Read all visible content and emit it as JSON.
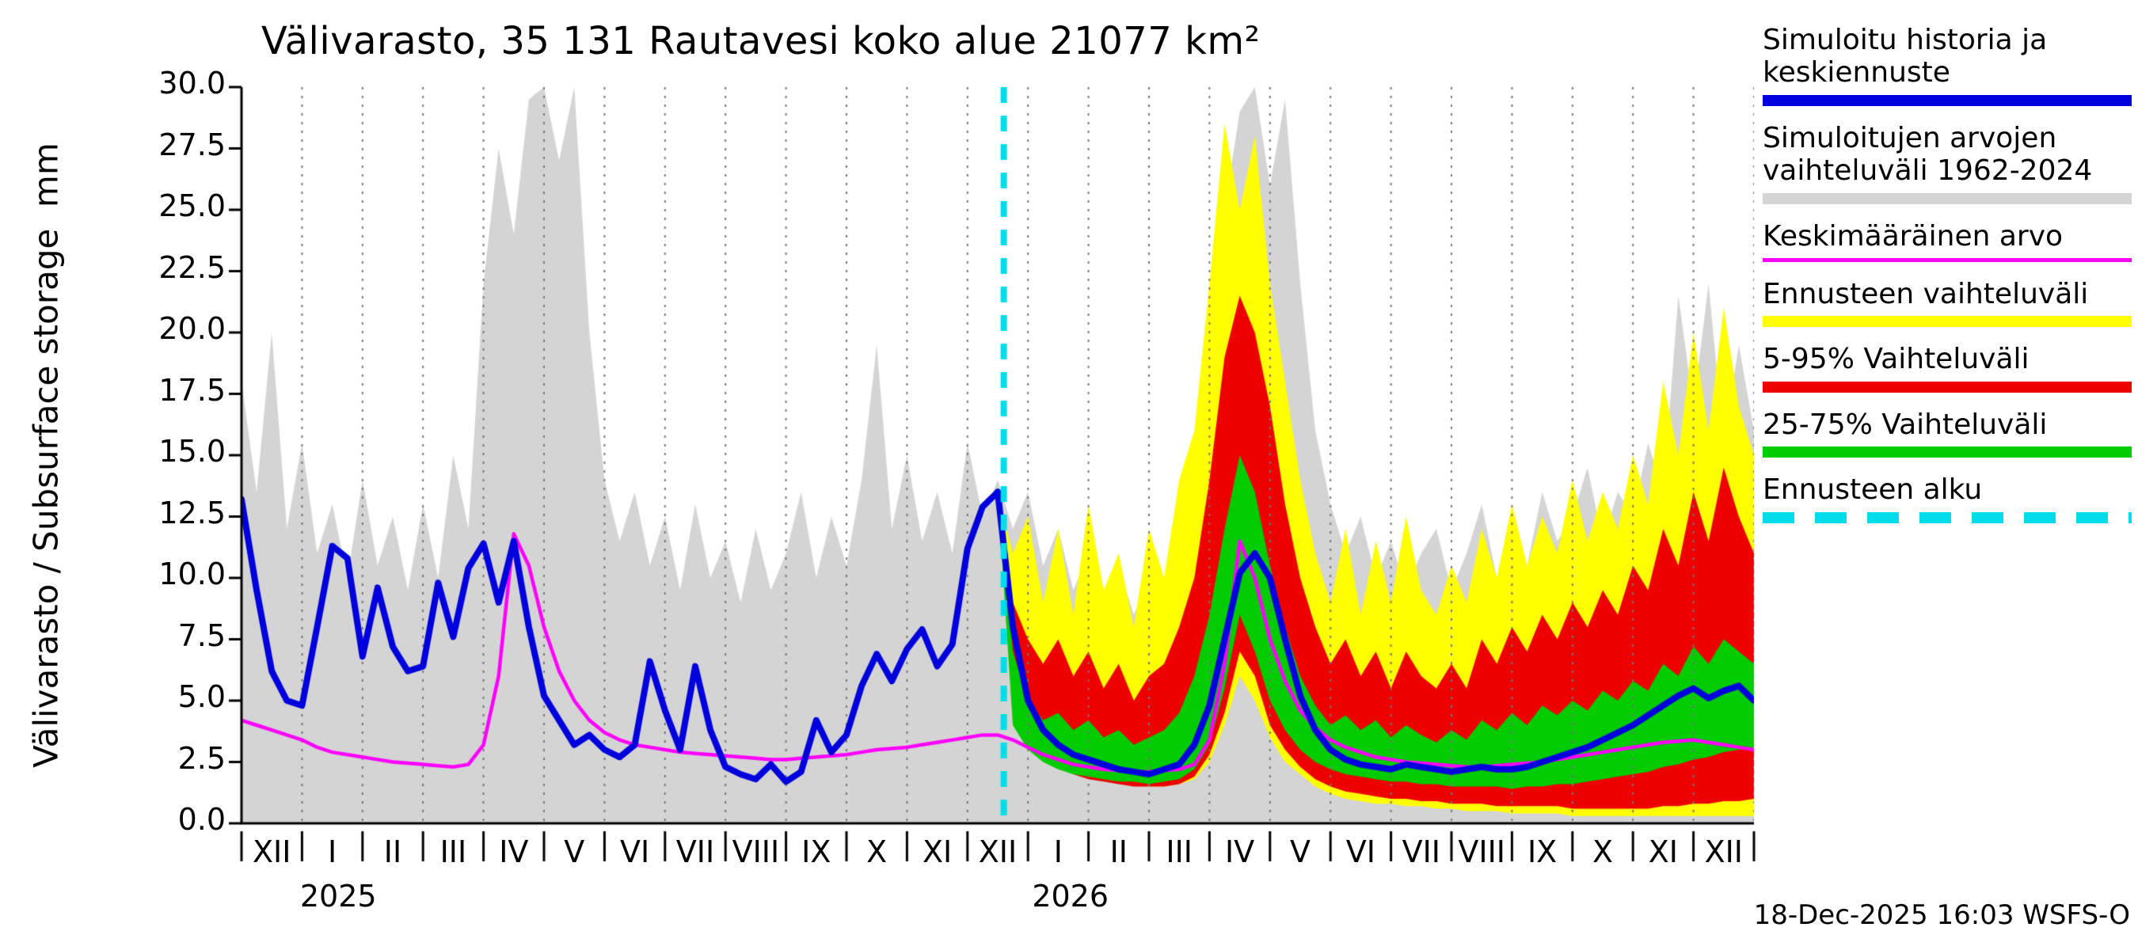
{
  "chart_data": {
    "type": "line",
    "title": "Välivarasto, 35 131 Rautavesi koko alue 21077 km²",
    "ylabel": "Välivarasto / Subsurface storage  mm",
    "ylim": [
      0,
      30
    ],
    "y_tick_step": 2.5,
    "y_tick_labels": [
      "0.0",
      "2.5",
      "5.0",
      "7.5",
      "10.0",
      "12.5",
      "15.0",
      "17.5",
      "20.0",
      "22.5",
      "25.0",
      "27.5",
      "30.0"
    ],
    "xlim_months": [
      0,
      25
    ],
    "x_unit": "months, 0 = 1 Dec 2024, series sampled at 0.25-month steps",
    "month_labels": [
      "XII",
      "I",
      "II",
      "III",
      "IV",
      "V",
      "VI",
      "VII",
      "VIII",
      "IX",
      "X",
      "XI",
      "XII",
      "I",
      "II",
      "III",
      "IV",
      "V",
      "VI",
      "VII",
      "VIII",
      "IX",
      "X",
      "XI",
      "XII"
    ],
    "year_labels": [
      {
        "text": "2025",
        "month": 1.6
      },
      {
        "text": "2026",
        "month": 13.7
      }
    ],
    "grid": {
      "vertical_months": true,
      "style": "dotted",
      "color": "#777777"
    },
    "forecast_start": {
      "label": "Ennusteen alku",
      "month": 12.6,
      "date": "18-Dec-2025",
      "color": "#00dcea"
    },
    "legend": [
      {
        "label": "Simuloitu historia ja keskiennuste",
        "color": "#0000dd",
        "swatch": "thick"
      },
      {
        "label": "Simuloitujen arvojen vaihteluväli 1962-2024",
        "color": "#d4d4d4",
        "swatch": "thick"
      },
      {
        "label": "Keskimääräinen arvo",
        "color": "#ff00ff",
        "swatch": "thin"
      },
      {
        "label": "Ennusteen vaihteluväli",
        "color": "#ffff00",
        "swatch": "thick"
      },
      {
        "label": "5-95% Vaihteluväli",
        "color": "#ee0000",
        "swatch": "thick"
      },
      {
        "label": "25-75% Vaihteluväli",
        "color": "#00cc00",
        "swatch": "thick"
      },
      {
        "label": "Ennusteen alku",
        "color": "#00dcea",
        "swatch": "dashed"
      }
    ],
    "series": [
      {
        "name": "Simuloitujen arvojen vaihteluväli 1962-2024",
        "type": "band",
        "color": "#d4d4d4",
        "start": 0,
        "step": 0.25,
        "lower": 0,
        "upper": [
          18,
          13.5,
          20,
          12,
          15.5,
          11,
          13,
          10,
          14,
          10.5,
          12.5,
          9.5,
          13,
          10,
          15,
          12,
          22,
          27.5,
          24,
          29.5,
          30,
          27,
          30,
          20,
          14,
          11.5,
          13.5,
          10.5,
          12.5,
          9.5,
          13,
          10,
          11.5,
          9,
          12,
          9.5,
          11,
          13.5,
          10,
          12.5,
          10.5,
          14,
          19.5,
          12,
          15,
          11.5,
          13.5,
          11,
          15.5,
          12.5,
          14,
          12,
          13.5,
          10.5,
          12,
          9.5,
          11,
          9,
          10.5,
          8.5,
          10,
          9,
          11.5,
          13,
          19,
          25,
          29,
          30,
          26,
          29.5,
          22,
          16,
          13,
          11,
          12.5,
          10,
          11.5,
          9.5,
          11,
          12,
          9.5,
          11,
          13,
          10,
          12,
          10.5,
          13.5,
          11.5,
          12.5,
          14.5,
          11.5,
          13.5,
          12.5,
          15.5,
          13.5,
          21.5,
          17,
          22,
          15.5,
          19.5,
          16
        ]
      },
      {
        "name": "Ennusteen vaihteluväli",
        "type": "band",
        "color": "#ffff00",
        "start": 12.5,
        "step": 0.25,
        "upper": [
          13.4,
          11,
          12.5,
          9,
          12,
          8.5,
          13,
          9.5,
          11,
          8,
          12,
          10,
          14,
          16,
          22,
          28.5,
          25,
          28,
          22,
          18,
          14,
          11,
          9,
          12,
          8.5,
          11.5,
          9,
          12.5,
          9.5,
          8.5,
          10.5,
          9,
          12,
          10,
          13,
          10.5,
          12.5,
          11,
          14,
          11.5,
          13.5,
          12,
          15,
          13,
          18,
          15,
          20,
          16,
          21,
          17,
          15
        ],
        "lower": [
          13.4,
          6,
          4,
          3,
          2.5,
          2.2,
          2,
          1.8,
          1.7,
          1.6,
          1.5,
          1.5,
          1.6,
          1.8,
          2.5,
          4,
          6,
          5,
          3.5,
          2.5,
          2,
          1.5,
          1.2,
          1,
          0.9,
          0.8,
          0.8,
          0.7,
          0.7,
          0.6,
          0.6,
          0.5,
          0.5,
          0.5,
          0.4,
          0.4,
          0.4,
          0.4,
          0.3,
          0.3,
          0.3,
          0.3,
          0.3,
          0.3,
          0.3,
          0.3,
          0.3,
          0.3,
          0.3,
          0.3,
          0.3
        ]
      },
      {
        "name": "5-95% Vaihteluväli",
        "type": "band",
        "color": "#ee0000",
        "start": 12.5,
        "step": 0.25,
        "upper": [
          13.4,
          9,
          7.5,
          6.5,
          7.5,
          6,
          7,
          5.5,
          6.5,
          5,
          6,
          6.5,
          8,
          10,
          14,
          19,
          21.5,
          20,
          17,
          13,
          10,
          8,
          6.5,
          7.5,
          6,
          7,
          5.5,
          7,
          6,
          5.5,
          6.5,
          5.5,
          7.5,
          6.5,
          8,
          7,
          8.5,
          7.5,
          9,
          8,
          9.5,
          8.5,
          10.5,
          9.5,
          12,
          10.5,
          13.5,
          11.5,
          14.5,
          12.5,
          11
        ],
        "lower": [
          13.4,
          5,
          3.5,
          2.8,
          2.3,
          2,
          1.8,
          1.7,
          1.6,
          1.5,
          1.5,
          1.5,
          1.6,
          1.9,
          2.8,
          4.5,
          7,
          6,
          4,
          3,
          2.3,
          1.8,
          1.5,
          1.3,
          1.2,
          1.1,
          1,
          1,
          0.9,
          0.9,
          0.8,
          0.8,
          0.8,
          0.7,
          0.7,
          0.7,
          0.7,
          0.7,
          0.6,
          0.6,
          0.6,
          0.6,
          0.6,
          0.6,
          0.7,
          0.7,
          0.8,
          0.8,
          0.9,
          0.9,
          1
        ]
      },
      {
        "name": "25-75% Vaihteluväli",
        "type": "band",
        "color": "#00cc00",
        "start": 12.5,
        "step": 0.25,
        "upper": [
          13.4,
          7,
          5,
          4.2,
          4.5,
          3.8,
          4.2,
          3.5,
          3.8,
          3.2,
          3.5,
          3.8,
          4.5,
          6,
          8.5,
          12,
          15,
          13.5,
          10.5,
          8,
          6,
          4.8,
          4,
          4.4,
          3.8,
          4.2,
          3.5,
          4,
          3.6,
          3.3,
          3.8,
          3.4,
          4.2,
          3.8,
          4.5,
          4,
          4.8,
          4.4,
          5,
          4.6,
          5.4,
          5,
          5.8,
          5.4,
          6.5,
          6,
          7.2,
          6.5,
          7.5,
          7,
          6.5
        ],
        "lower": [
          13.4,
          4,
          3,
          2.5,
          2.2,
          2,
          1.9,
          1.8,
          1.7,
          1.7,
          1.6,
          1.7,
          1.8,
          2.2,
          3.2,
          5.5,
          8.5,
          7,
          5,
          3.8,
          3,
          2.5,
          2.2,
          2,
          1.9,
          1.8,
          1.7,
          1.7,
          1.6,
          1.6,
          1.5,
          1.5,
          1.5,
          1.5,
          1.4,
          1.5,
          1.5,
          1.6,
          1.6,
          1.7,
          1.8,
          1.9,
          2,
          2.1,
          2.3,
          2.4,
          2.6,
          2.7,
          2.9,
          3,
          3
        ]
      },
      {
        "name": "Keskimääräinen arvo",
        "type": "line",
        "color": "#ff00ff",
        "width": 4.5,
        "start": 0,
        "step": 0.25,
        "values": [
          4.2,
          4,
          3.8,
          3.6,
          3.4,
          3.1,
          2.9,
          2.8,
          2.7,
          2.6,
          2.5,
          2.45,
          2.4,
          2.35,
          2.3,
          2.4,
          3.2,
          6,
          11.8,
          10.5,
          8,
          6.2,
          5,
          4.2,
          3.7,
          3.4,
          3.2,
          3.1,
          3,
          2.9,
          2.85,
          2.8,
          2.75,
          2.7,
          2.65,
          2.6,
          2.6,
          2.65,
          2.7,
          2.75,
          2.8,
          2.9,
          3,
          3.05,
          3.1,
          3.2,
          3.3,
          3.4,
          3.5,
          3.6,
          3.6,
          3.4,
          3.1,
          2.8,
          2.6,
          2.4,
          2.3,
          2.2,
          2.15,
          2.1,
          2.1,
          2.15,
          2.2,
          2.4,
          3.4,
          6.5,
          11.5,
          10,
          7.5,
          5.8,
          4.6,
          3.9,
          3.4,
          3.1,
          2.9,
          2.7,
          2.6,
          2.5,
          2.45,
          2.4,
          2.35,
          2.3,
          2.3,
          2.35,
          2.4,
          2.45,
          2.5,
          2.6,
          2.7,
          2.8,
          2.9,
          3,
          3.1,
          3.2,
          3.3,
          3.35,
          3.4,
          3.3,
          3.2,
          3.1,
          3
        ]
      },
      {
        "name": "Simuloitu historia",
        "type": "line",
        "color": "#0000dd",
        "width": 8,
        "start": 0,
        "step": 0.25,
        "values": [
          13.2,
          9.5,
          6.2,
          5,
          4.8,
          8,
          11.3,
          10.8,
          6.8,
          9.6,
          7.2,
          6.2,
          6.4,
          9.8,
          7.6,
          10.4,
          11.4,
          9,
          11.5,
          8,
          5.2,
          4.2,
          3.2,
          3.6,
          3,
          2.7,
          3.2,
          6.6,
          4.6,
          3,
          6.4,
          3.8,
          2.3,
          2,
          1.8,
          2.4,
          1.7,
          2.1,
          4.2,
          2.9,
          3.6,
          5.6,
          6.9,
          5.8,
          7.1,
          7.9,
          6.4,
          7.3,
          11.2,
          12.9,
          13.5
        ]
      },
      {
        "name": "Keskiennuste",
        "type": "line",
        "color": "#0000dd",
        "width": 8,
        "start": 12.5,
        "step": 0.25,
        "values": [
          13.5,
          8,
          5,
          3.8,
          3.2,
          2.8,
          2.6,
          2.4,
          2.2,
          2.1,
          2,
          2.2,
          2.4,
          3.2,
          4.8,
          7.5,
          10.2,
          11,
          10,
          7.5,
          5.2,
          3.8,
          3,
          2.6,
          2.4,
          2.3,
          2.2,
          2.4,
          2.3,
          2.2,
          2.1,
          2.2,
          2.3,
          2.2,
          2.2,
          2.3,
          2.5,
          2.7,
          2.9,
          3.1,
          3.4,
          3.7,
          4,
          4.4,
          4.8,
          5.2,
          5.5,
          5.1,
          5.4,
          5.6,
          5
        ]
      }
    ],
    "footer_timestamp": "18-Dec-2025 16:03 WSFS-O"
  }
}
